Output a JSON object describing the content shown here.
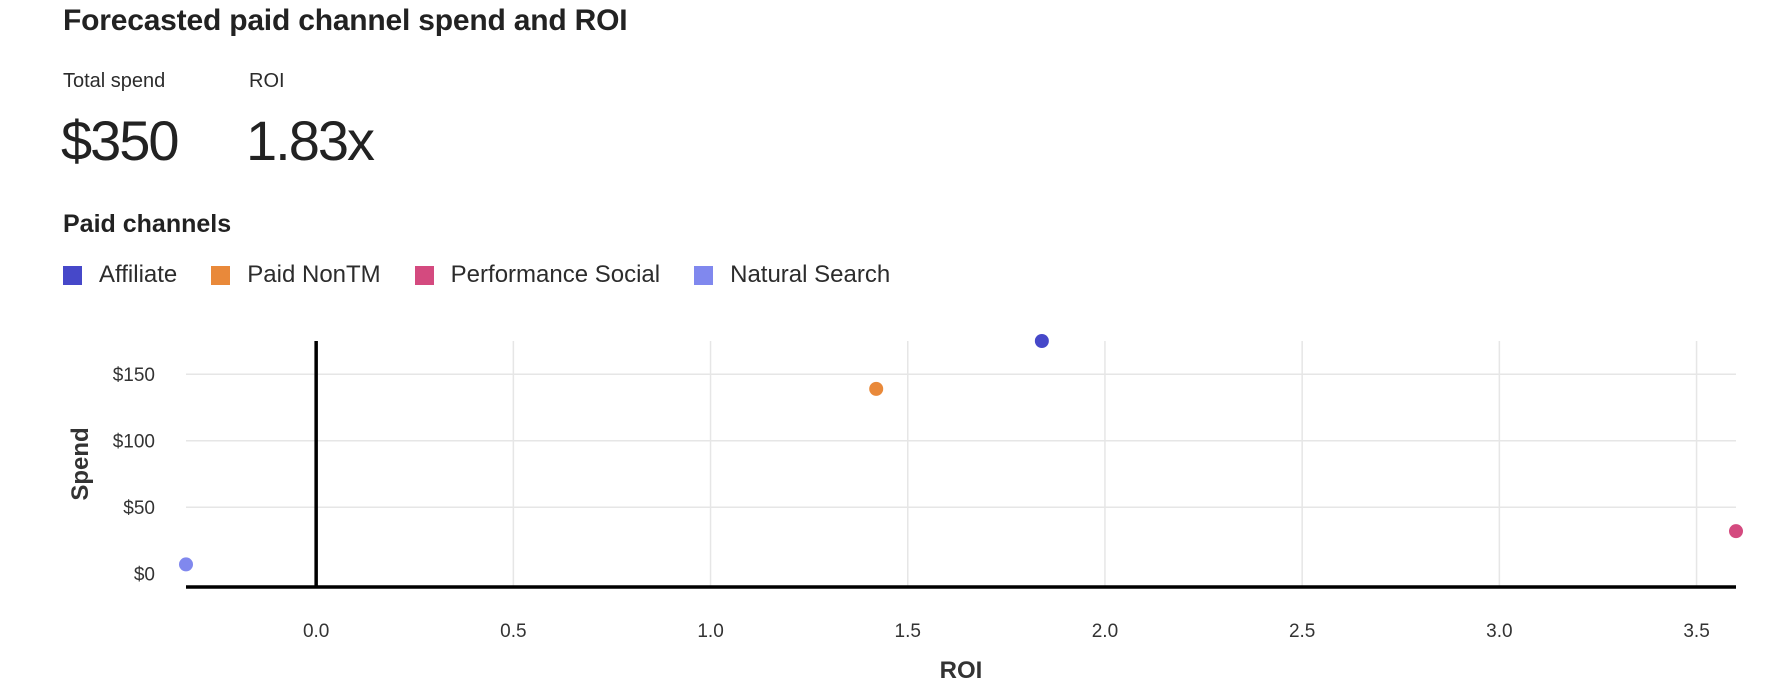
{
  "header": {
    "title": "Forecasted paid channel spend and ROI"
  },
  "kpis": {
    "total_spend_label": "Total spend",
    "total_spend_value": "$350",
    "roi_label": "ROI",
    "roi_value": "1.83x"
  },
  "section": {
    "title": "Paid channels"
  },
  "colors": {
    "affiliate": "#4648c9",
    "paid_nontm": "#e9893a",
    "performance_social": "#d44a7f",
    "natural_search": "#8088ee",
    "gridline": "#e6e6e6",
    "axis": "#000000"
  },
  "chart_data": {
    "type": "scatter",
    "xlabel": "ROI",
    "ylabel": "Spend",
    "xlim": [
      -0.33,
      3.6
    ],
    "ylim": [
      -10,
      175
    ],
    "x_ticks": [
      0.0,
      0.5,
      1.0,
      1.5,
      2.0,
      2.5,
      3.0,
      3.5
    ],
    "x_tick_labels": [
      "0.0",
      "0.5",
      "1.0",
      "1.5",
      "2.0",
      "2.5",
      "3.0",
      "3.5"
    ],
    "y_ticks": [
      0,
      50,
      100,
      150
    ],
    "y_tick_labels": [
      "$0",
      "$50",
      "$100",
      "$150"
    ],
    "grid": true,
    "legend_position": "top-left",
    "series": [
      {
        "name": "Affiliate",
        "color": "#4648c9",
        "points": [
          {
            "x": 1.84,
            "y": 175
          }
        ]
      },
      {
        "name": "Paid NonTM",
        "color": "#e9893a",
        "points": [
          {
            "x": 1.42,
            "y": 139
          }
        ]
      },
      {
        "name": "Performance Social",
        "color": "#d44a7f",
        "points": [
          {
            "x": 3.6,
            "y": 32
          }
        ]
      },
      {
        "name": "Natural Search",
        "color": "#8088ee",
        "points": [
          {
            "x": -0.33,
            "y": 7
          }
        ]
      }
    ]
  }
}
